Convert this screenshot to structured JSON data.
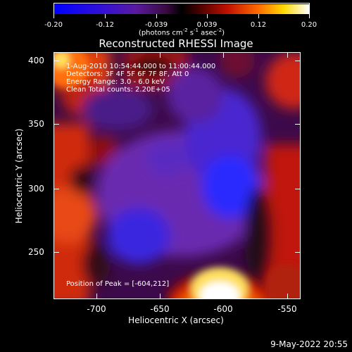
{
  "colorbar": {
    "ticks": [
      "-0.20",
      "-0.12",
      "-0.039",
      "0.039",
      "0.12",
      "0.20"
    ],
    "units_prefix": "(photons cm",
    "units_exp1": "-2",
    "units_mid1": " s",
    "units_exp2": "-1",
    "units_mid2": " asec",
    "units_exp3": "-2",
    "units_suffix": ")"
  },
  "title": "Reconstructed RHESSI Image",
  "info": {
    "line1": "1-Aug-2010 10:54:44.000 to 11:00:44.000",
    "line2": "Detectors: 3F 4F 5F 6F 7F 8F, Att 0",
    "line3": "Energy Range: 3.0 - 6.0 keV",
    "line4": "Clean    Total counts: 2.20E+05",
    "peak": "Position of Peak = [-604,212]"
  },
  "axes": {
    "xlabel": "Heliocentric X (arcsec)",
    "ylabel": "Heliocentric Y (arcsec)",
    "xticks": [
      "-700",
      "-650",
      "-600",
      "-550"
    ],
    "yticks": [
      "400",
      "350",
      "300",
      "250"
    ]
  },
  "timestamp": "9-May-2022 20:55",
  "colors": {
    "bar_low": "#0000ff",
    "bar_mid": "#000000",
    "bar_high": "#ffffff"
  },
  "chart_data": {
    "type": "heatmap",
    "title": "Reconstructed RHESSI Image",
    "xlabel": "Heliocentric X (arcsec)",
    "ylabel": "Heliocentric Y (arcsec)",
    "xlim": [
      -735,
      -540
    ],
    "ylim": [
      210,
      405
    ],
    "color_range": [
      -0.2,
      0.2
    ],
    "peak_position": [
      -604,
      212
    ]
  }
}
